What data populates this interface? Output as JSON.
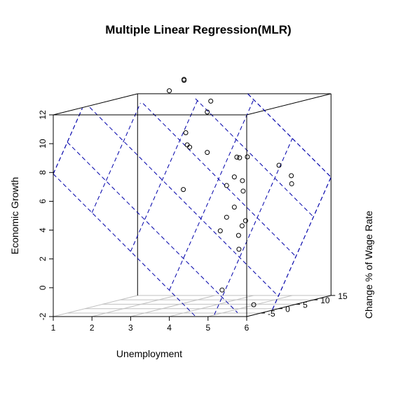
{
  "chart_data": {
    "type": "scatter3d",
    "title": "Multiple Linear Regression(MLR)",
    "xlabel": "Unemployment",
    "ylabel": "Change % of Wage Rate",
    "zlabel": "Economic Growth",
    "x_ticks": [
      1,
      2,
      3,
      4,
      5,
      6
    ],
    "y_ticks": [
      -5,
      0,
      5,
      10,
      15
    ],
    "z_ticks": [
      -2,
      0,
      2,
      4,
      6,
      8,
      10,
      12
    ],
    "xlim": [
      1,
      6
    ],
    "ylim": [
      -9,
      15
    ],
    "zlim": [
      -2,
      12
    ],
    "grid": true,
    "points": [
      {
        "x": 2.2,
        "y": 15,
        "z": 13.0
      },
      {
        "x": 3.2,
        "y": 4.0,
        "z": 13.6
      },
      {
        "x": 3.0,
        "y": 2.0,
        "z": 13.0
      },
      {
        "x": 3.8,
        "y": 5.0,
        "z": 12.1
      },
      {
        "x": 3.8,
        "y": 4.0,
        "z": 11.4
      },
      {
        "x": 3.1,
        "y": 6.0,
        "z": 9.0
      },
      {
        "x": 2.8,
        "y": 10.0,
        "z": 8.6
      },
      {
        "x": 3.8,
        "y": 4.0,
        "z": 8.6
      },
      {
        "x": 2.7,
        "y": 10.0,
        "z": 9.6
      },
      {
        "x": 4.0,
        "y": 11.0,
        "z": 7.8
      },
      {
        "x": 5.2,
        "y": -3.0,
        "z": 8.7
      },
      {
        "x": 5.0,
        "y": 2.2,
        "z": 8.4
      },
      {
        "x": 4.5,
        "y": 4.0,
        "z": 6.9
      },
      {
        "x": 4.8,
        "y": 3.0,
        "z": 6.7
      },
      {
        "x": 3.0,
        "y": 6.0,
        "z": 5.9
      },
      {
        "x": 4.3,
        "y": 4.0,
        "z": 6.3
      },
      {
        "x": 5.2,
        "y": 9.0,
        "z": 7.4
      },
      {
        "x": 5.0,
        "y": 1.0,
        "z": 6.1
      },
      {
        "x": 4.5,
        "y": 4.0,
        "z": 4.8
      },
      {
        "x": 4.3,
        "y": 4.0,
        "z": 4.1
      },
      {
        "x": 4.5,
        "y": 0.0,
        "z": 3.4
      },
      {
        "x": 4.7,
        "y": 5.0,
        "z": 3.8
      },
      {
        "x": 4.7,
        "y": 4.0,
        "z": 3.5
      },
      {
        "x": 4.7,
        "y": 3.0,
        "z": 2.9
      },
      {
        "x": 5.7,
        "y": 7.0,
        "z": 6.8
      },
      {
        "x": 5.8,
        "y": 6.0,
        "z": 6.3
      },
      {
        "x": 4.8,
        "y": 2.0,
        "z": 2.0
      },
      {
        "x": 5.0,
        "y": -5.0,
        "z": -0.4
      },
      {
        "x": 6.0,
        "y": -7.0,
        "z": -1.3
      }
    ],
    "regression_plane": {
      "intercept": 15.0,
      "x_coef": -2.69,
      "y_coef": 0.49
    },
    "plane_grid_x": [
      1,
      2,
      3,
      4,
      5,
      6
    ],
    "plane_grid_y": [
      -5,
      0,
      5,
      10,
      15
    ]
  }
}
